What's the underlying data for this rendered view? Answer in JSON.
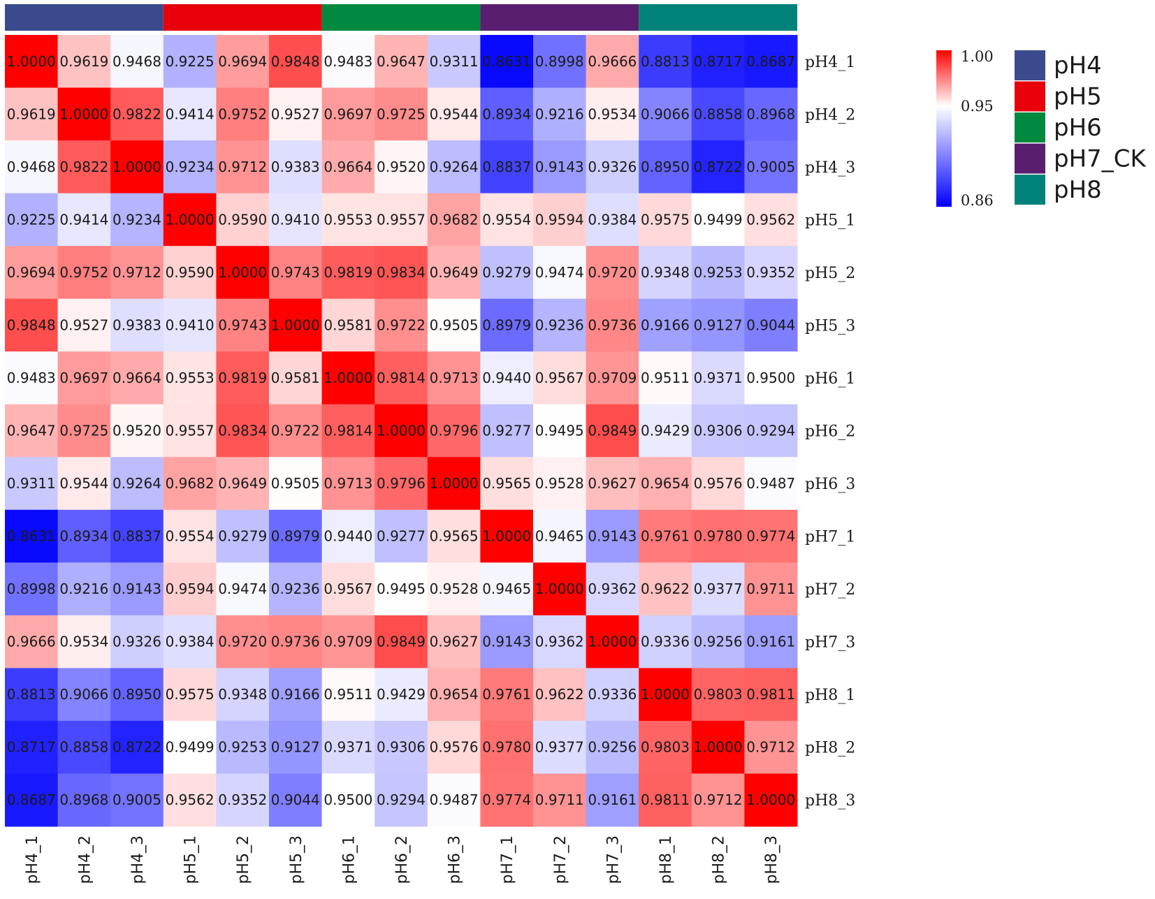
{
  "chart_data": {
    "type": "heatmap",
    "title": "",
    "row_labels": [
      "pH4_1",
      "pH4_2",
      "pH4_3",
      "pH5_1",
      "pH5_2",
      "pH5_3",
      "pH6_1",
      "pH6_2",
      "pH6_3",
      "pH7_1",
      "pH7_2",
      "pH7_3",
      "pH8_1",
      "pH8_2",
      "pH8_3"
    ],
    "col_labels": [
      "pH4_1",
      "pH4_2",
      "pH4_3",
      "pH5_1",
      "pH5_2",
      "pH5_3",
      "pH6_1",
      "pH6_2",
      "pH6_3",
      "pH7_1",
      "pH7_2",
      "pH7_3",
      "pH8_1",
      "pH8_2",
      "pH8_3"
    ],
    "values": [
      [
        "1.0000",
        "0.9619",
        "0.9468",
        "0.9225",
        "0.9694",
        "0.9848",
        "0.9483",
        "0.9647",
        "0.9311",
        "0.8631",
        "0.8998",
        "0.9666",
        "0.8813",
        "0.8717",
        "0.8687"
      ],
      [
        "0.9619",
        "1.0000",
        "0.9822",
        "0.9414",
        "0.9752",
        "0.9527",
        "0.9697",
        "0.9725",
        "0.9544",
        "0.8934",
        "0.9216",
        "0.9534",
        "0.9066",
        "0.8858",
        "0.8968"
      ],
      [
        "0.9468",
        "0.9822",
        "1.0000",
        "0.9234",
        "0.9712",
        "0.9383",
        "0.9664",
        "0.9520",
        "0.9264",
        "0.8837",
        "0.9143",
        "0.9326",
        "0.8950",
        "0.8722",
        "0.9005"
      ],
      [
        "0.9225",
        "0.9414",
        "0.9234",
        "1.0000",
        "0.9590",
        "0.9410",
        "0.9553",
        "0.9557",
        "0.9682",
        "0.9554",
        "0.9594",
        "0.9384",
        "0.9575",
        "0.9499",
        "0.9562"
      ],
      [
        "0.9694",
        "0.9752",
        "0.9712",
        "0.9590",
        "1.0000",
        "0.9743",
        "0.9819",
        "0.9834",
        "0.9649",
        "0.9279",
        "0.9474",
        "0.9720",
        "0.9348",
        "0.9253",
        "0.9352"
      ],
      [
        "0.9848",
        "0.9527",
        "0.9383",
        "0.9410",
        "0.9743",
        "1.0000",
        "0.9581",
        "0.9722",
        "0.9505",
        "0.8979",
        "0.9236",
        "0.9736",
        "0.9166",
        "0.9127",
        "0.9044"
      ],
      [
        "0.9483",
        "0.9697",
        "0.9664",
        "0.9553",
        "0.9819",
        "0.9581",
        "1.0000",
        "0.9814",
        "0.9713",
        "0.9440",
        "0.9567",
        "0.9709",
        "0.9511",
        "0.9371",
        "0.9500"
      ],
      [
        "0.9647",
        "0.9725",
        "0.9520",
        "0.9557",
        "0.9834",
        "0.9722",
        "0.9814",
        "1.0000",
        "0.9796",
        "0.9277",
        "0.9495",
        "0.9849",
        "0.9429",
        "0.9306",
        "0.9294"
      ],
      [
        "0.9311",
        "0.9544",
        "0.9264",
        "0.9682",
        "0.9649",
        "0.9505",
        "0.9713",
        "0.9796",
        "1.0000",
        "0.9565",
        "0.9528",
        "0.9627",
        "0.9654",
        "0.9576",
        "0.9487"
      ],
      [
        "0.8631",
        "0.8934",
        "0.8837",
        "0.9554",
        "0.9279",
        "0.8979",
        "0.9440",
        "0.9277",
        "0.9565",
        "1.0000",
        "0.9465",
        "0.9143",
        "0.9761",
        "0.9780",
        "0.9774"
      ],
      [
        "0.8998",
        "0.9216",
        "0.9143",
        "0.9594",
        "0.9474",
        "0.9236",
        "0.9567",
        "0.9495",
        "0.9528",
        "0.9465",
        "1.0000",
        "0.9362",
        "0.9622",
        "0.9377",
        "0.9711"
      ],
      [
        "0.9666",
        "0.9534",
        "0.9326",
        "0.9384",
        "0.9720",
        "0.9736",
        "0.9709",
        "0.9849",
        "0.9627",
        "0.9143",
        "0.9362",
        "1.0000",
        "0.9336",
        "0.9256",
        "0.9161"
      ],
      [
        "0.8813",
        "0.9066",
        "0.8950",
        "0.9575",
        "0.9348",
        "0.9166",
        "0.9511",
        "0.9429",
        "0.9654",
        "0.9761",
        "0.9622",
        "0.9336",
        "1.0000",
        "0.9803",
        "0.9811"
      ],
      [
        "0.8717",
        "0.8858",
        "0.8722",
        "0.9499",
        "0.9253",
        "0.9127",
        "0.9371",
        "0.9306",
        "0.9576",
        "0.9780",
        "0.9377",
        "0.9256",
        "0.9803",
        "1.0000",
        "0.9712"
      ],
      [
        "0.8687",
        "0.8968",
        "0.9005",
        "0.9562",
        "0.9352",
        "0.9044",
        "0.9500",
        "0.9294",
        "0.9487",
        "0.9774",
        "0.9711",
        "0.9161",
        "0.9811",
        "0.9712",
        "1.0000"
      ]
    ],
    "color_scale": {
      "min": 0.86,
      "mid": 0.95,
      "max": 1.0,
      "min_color": "#0000ff",
      "mid_color": "#ffffff",
      "max_color": "#ff0000",
      "tick_labels": [
        "1.00",
        "0.95",
        "0.86"
      ]
    },
    "groups": [
      {
        "name": "pH4",
        "color": "#3a4a8c",
        "columns": 3
      },
      {
        "name": "pH5",
        "color": "#e8000b",
        "columns": 3
      },
      {
        "name": "pH6",
        "color": "#00893f",
        "columns": 3
      },
      {
        "name": "pH7_CK",
        "color": "#5a1e6e",
        "columns": 3
      },
      {
        "name": "pH8",
        "color": "#00827a",
        "columns": 3
      }
    ],
    "legend_position": "top-right"
  }
}
